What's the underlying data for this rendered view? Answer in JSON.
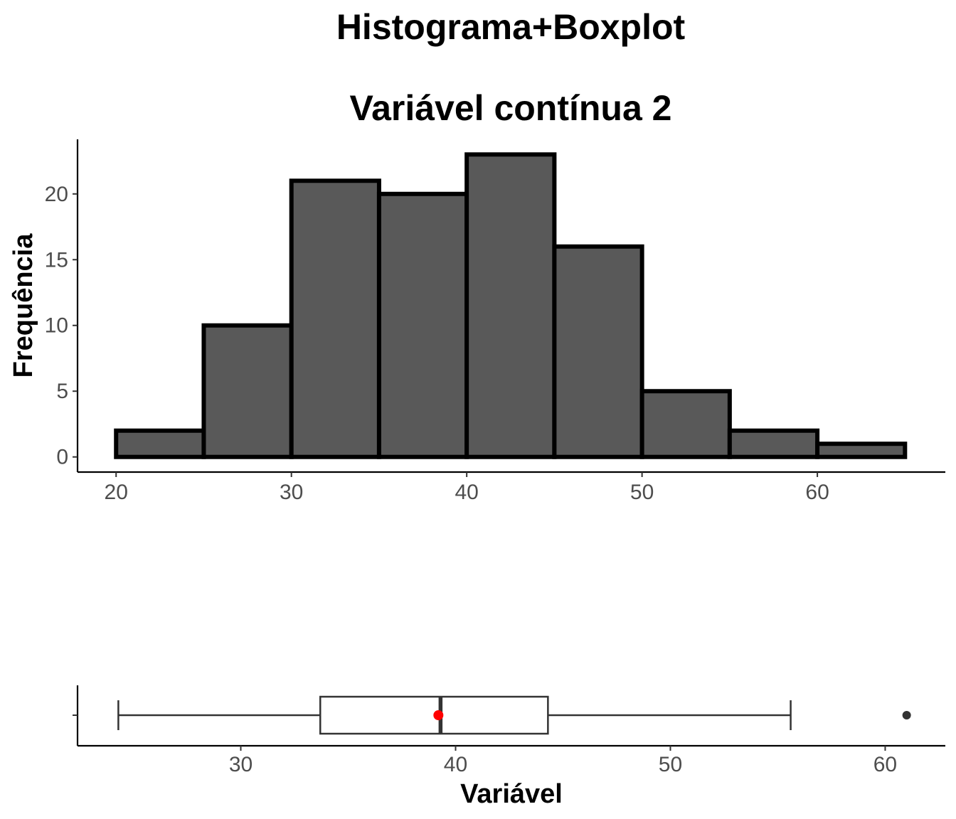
{
  "titles": {
    "line1": "Histograma+Boxplot",
    "line2": "Variável contínua 2"
  },
  "chart_data": [
    {
      "type": "bar",
      "subtype": "histogram",
      "ylabel": "Frequência",
      "xlabel": "",
      "bins": [
        {
          "start": 20,
          "end": 25,
          "count": 2
        },
        {
          "start": 25,
          "end": 30,
          "count": 10
        },
        {
          "start": 30,
          "end": 35,
          "count": 21
        },
        {
          "start": 35,
          "end": 40,
          "count": 20
        },
        {
          "start": 40,
          "end": 45,
          "count": 23
        },
        {
          "start": 45,
          "end": 50,
          "count": 16
        },
        {
          "start": 50,
          "end": 55,
          "count": 5
        },
        {
          "start": 55,
          "end": 60,
          "count": 2
        },
        {
          "start": 60,
          "end": 65,
          "count": 1
        }
      ],
      "x_ticks": [
        20,
        30,
        40,
        50,
        60
      ],
      "y_ticks": [
        0,
        5,
        10,
        15,
        20
      ],
      "xlim": [
        17.8,
        67.3
      ],
      "ylim": [
        -1.15,
        24.15
      ],
      "fill_color": "#595959",
      "border_color": "#000000",
      "grid": false
    },
    {
      "type": "boxplot",
      "orientation": "horizontal",
      "xlabel": "Variável",
      "ylabel": "",
      "whisker_low": 24.3,
      "q1": 33.7,
      "median": 39.3,
      "q3": 44.3,
      "whisker_high": 55.6,
      "mean": 39.2,
      "outliers": [
        61.0
      ],
      "x_ticks": [
        30,
        40,
        50,
        60
      ],
      "xlim": [
        22.4,
        62.8
      ],
      "mean_color": "#ff0000",
      "grid": false
    }
  ]
}
